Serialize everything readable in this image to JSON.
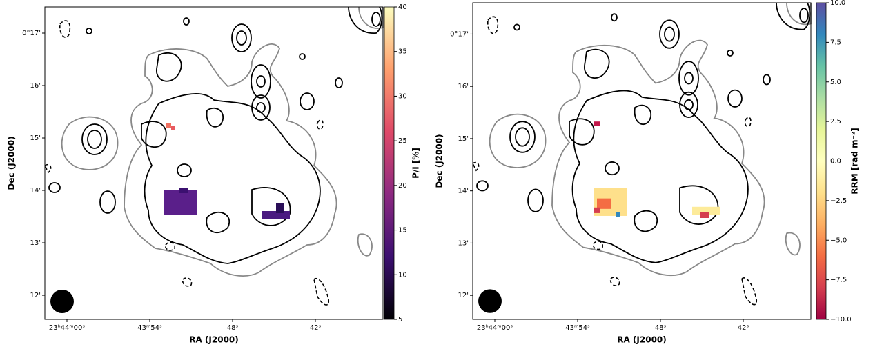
{
  "chart_data": [
    {
      "type": "image",
      "xlabel": "RA (J2000)",
      "ylabel": "Dec (J2000)",
      "xlim": [
        61.6,
        37.1
      ],
      "xticks": [
        {
          "value": 60,
          "label": "23ʰ44ᵐ00ˢ"
        },
        {
          "value": 54,
          "label": "43ᵐ54ˢ"
        },
        {
          "value": 48,
          "label": "48ˢ"
        },
        {
          "value": 42,
          "label": "42ˢ"
        }
      ],
      "ylim": [
        11.54,
        17.5
      ],
      "yticks": [
        {
          "value": 17,
          "label": "0°17'"
        },
        {
          "value": 16,
          "label": "16'"
        },
        {
          "value": 15,
          "label": "15'"
        },
        {
          "value": 14,
          "label": "14'"
        },
        {
          "value": 13,
          "label": "13'"
        },
        {
          "value": 12,
          "label": "12'"
        }
      ],
      "colorbar": {
        "label": "P/I [%]",
        "cmap": "magma",
        "lim": [
          5,
          40
        ],
        "ticks": [
          5,
          10,
          15,
          20,
          25,
          30,
          35,
          40
        ]
      }
    },
    {
      "type": "image",
      "xlabel": "RA (J2000)",
      "ylabel": "Dec (J2000)",
      "xlim": [
        61.6,
        37.1
      ],
      "xticks": [
        {
          "value": 60,
          "label": "23ʰ44ᵐ00ˢ"
        },
        {
          "value": 54,
          "label": "43ᵐ54ˢ"
        },
        {
          "value": 48,
          "label": "48ˢ"
        },
        {
          "value": 42,
          "label": "42ˢ"
        }
      ],
      "ylim": [
        11.54,
        17.6
      ],
      "yticks": [
        {
          "value": 17,
          "label": "0°17'"
        },
        {
          "value": 16,
          "label": "16'"
        },
        {
          "value": 15,
          "label": "15'"
        },
        {
          "value": 14,
          "label": "14'"
        },
        {
          "value": 13,
          "label": "13'"
        },
        {
          "value": 12,
          "label": "12'"
        }
      ],
      "colorbar": {
        "label": "RRM [rad m⁻²]",
        "cmap": "Spectral",
        "lim": [
          -10,
          10
        ],
        "ticks": [
          {
            "value": -10,
            "label": "−10.0"
          },
          {
            "value": -7.5,
            "label": "−7.5"
          },
          {
            "value": -5,
            "label": "−5.0"
          },
          {
            "value": -2.5,
            "label": "−2.5"
          },
          {
            "value": 0,
            "label": "0.0"
          },
          {
            "value": 2.5,
            "label": "2.5"
          },
          {
            "value": 5,
            "label": "5.0"
          },
          {
            "value": 7.5,
            "label": "7.5"
          },
          {
            "value": 10,
            "label": "10.0"
          }
        ]
      }
    }
  ]
}
